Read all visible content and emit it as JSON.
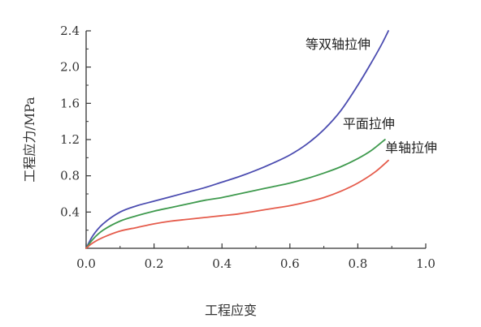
{
  "chart_data": {
    "type": "line",
    "xlabel": "工程应变",
    "ylabel": "工程应力/MPa",
    "xlim": [
      0.0,
      1.0
    ],
    "ylim": [
      0.0,
      2.4
    ],
    "xticks": [
      "0.0",
      "0.2",
      "0.4",
      "0.6",
      "0.8",
      "1.0"
    ],
    "yticks": [
      "0.4",
      "0.8",
      "1.2",
      "1.6",
      "2.0",
      "2.4"
    ],
    "grid": false,
    "series": [
      {
        "name": "等双轴拉伸",
        "color": "#4b4cb0",
        "x": [
          0.0,
          0.02,
          0.05,
          0.1,
          0.15,
          0.2,
          0.25,
          0.3,
          0.35,
          0.4,
          0.45,
          0.5,
          0.55,
          0.6,
          0.65,
          0.7,
          0.75,
          0.8,
          0.84,
          0.87,
          0.89
        ],
        "y": [
          0.0,
          0.14,
          0.27,
          0.4,
          0.47,
          0.52,
          0.57,
          0.62,
          0.67,
          0.73,
          0.79,
          0.86,
          0.94,
          1.03,
          1.15,
          1.31,
          1.52,
          1.8,
          2.05,
          2.25,
          2.4
        ]
      },
      {
        "name": "平面拉伸",
        "color": "#3f9a4e",
        "x": [
          0.0,
          0.02,
          0.05,
          0.1,
          0.15,
          0.2,
          0.25,
          0.3,
          0.35,
          0.4,
          0.45,
          0.5,
          0.55,
          0.6,
          0.65,
          0.7,
          0.75,
          0.8,
          0.84,
          0.88
        ],
        "y": [
          0.0,
          0.1,
          0.2,
          0.3,
          0.36,
          0.41,
          0.45,
          0.49,
          0.53,
          0.56,
          0.6,
          0.64,
          0.68,
          0.72,
          0.77,
          0.83,
          0.9,
          0.99,
          1.08,
          1.2
        ]
      },
      {
        "name": "单轴拉伸",
        "color": "#e55c4c",
        "x": [
          0.0,
          0.02,
          0.05,
          0.1,
          0.15,
          0.2,
          0.25,
          0.3,
          0.35,
          0.4,
          0.45,
          0.5,
          0.55,
          0.6,
          0.65,
          0.7,
          0.75,
          0.8,
          0.85,
          0.89
        ],
        "y": [
          0.0,
          0.06,
          0.12,
          0.19,
          0.23,
          0.27,
          0.3,
          0.32,
          0.34,
          0.36,
          0.38,
          0.41,
          0.44,
          0.47,
          0.51,
          0.56,
          0.63,
          0.72,
          0.84,
          0.97
        ]
      }
    ]
  }
}
